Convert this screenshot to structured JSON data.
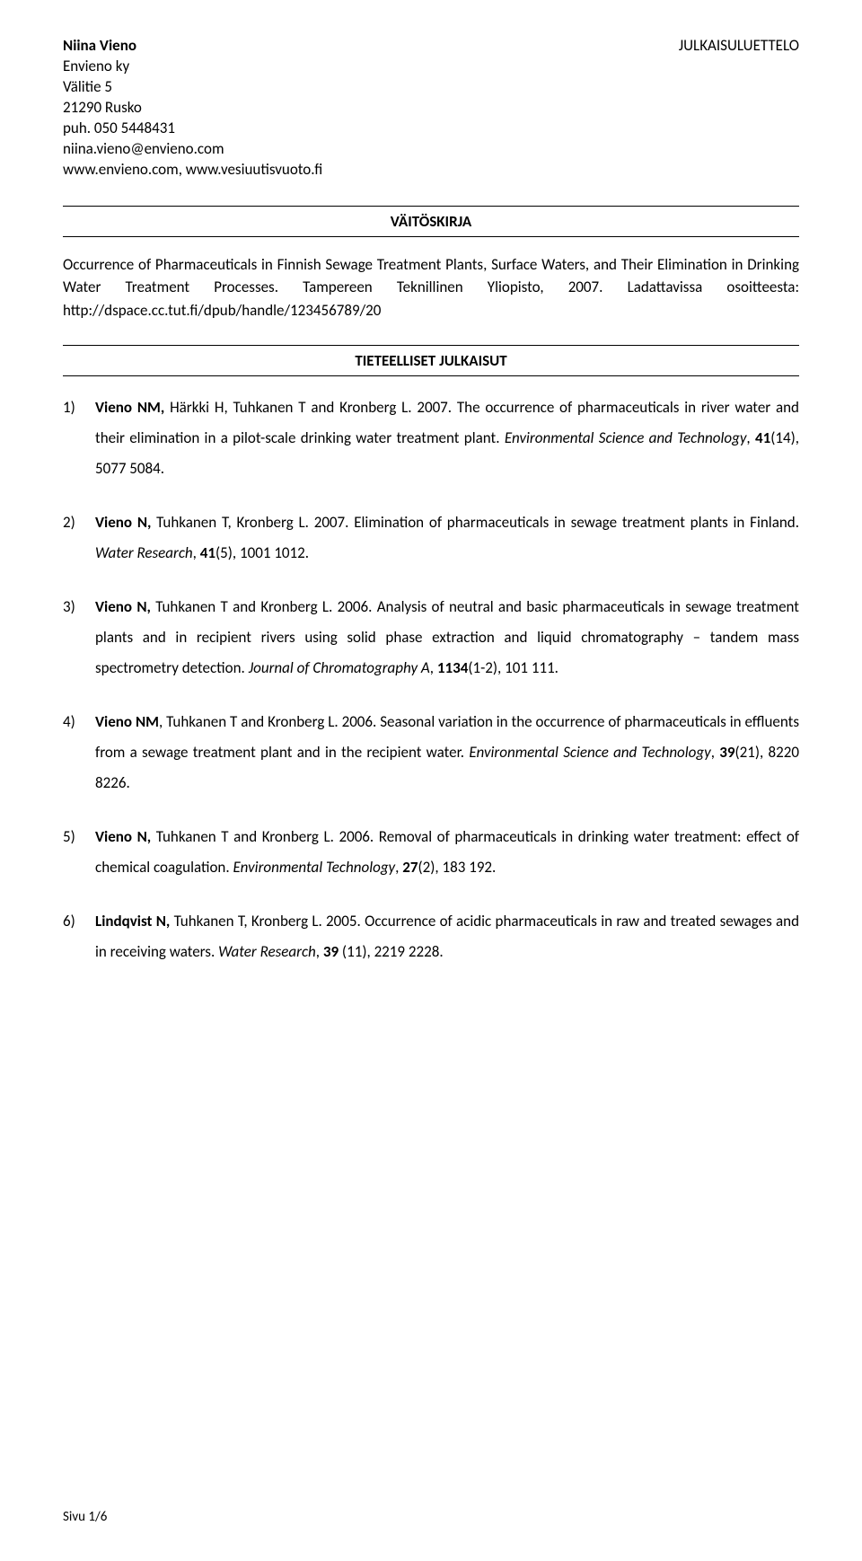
{
  "header": {
    "name": "Niina Vieno",
    "company": "Envieno ky",
    "street": "Välitie 5",
    "city": "21290 Rusko",
    "phone": "puh. 050 5448431",
    "email": "niina.vieno@envieno.com",
    "web": "www.envieno.com, www.vesiuutisvuoto.fi",
    "right": "JULKAISULUETTELO"
  },
  "section1": {
    "title": "VÄITÖSKIRJA",
    "intro_plain": "Occurrence of Pharmaceuticals in Finnish Sewage Treatment Plants, Surface Waters, and Their Elimination in Drinking Water Treatment Processes. Tampereen Teknillinen Yliopisto, 2007. Ladattavissa osoitteesta: http://dspace.cc.tut.fi/dpub/handle/123456789/20"
  },
  "section2": {
    "title": "TIETEELLISET JULKAISUT"
  },
  "pubs": [
    {
      "auth_bold": "Vieno NM,",
      "auth_rest": " Härkki H, Tuhkanen T and Kronberg L. 2007. The occurrence of pharmaceuticals in river water and their elimination in a pilot-scale drinking water treatment plant. ",
      "journal": "Environmental Science and Technology",
      "vol_bold": "41",
      "tail": "(14), 5077 5084."
    },
    {
      "auth_bold": "Vieno N,",
      "auth_rest": " Tuhkanen T, Kronberg L. 2007. Elimination of pharmaceuticals in sewage treatment plants in Finland. ",
      "journal": "Water Research",
      "vol_bold": "41",
      "tail": "(5), 1001 1012."
    },
    {
      "auth_bold": "Vieno N,",
      "auth_rest": " Tuhkanen T and Kronberg L. 2006. Analysis of neutral and basic pharmaceuticals in sewage treatment plants and in recipient rivers using solid phase extraction and liquid chromatography – tandem mass spectrometry detection. ",
      "journal": "Journal of Chromatography A",
      "vol_bold": "1134",
      "tail": "(1-2), 101 111."
    },
    {
      "auth_bold": "Vieno NM",
      "auth_rest": ", Tuhkanen T and Kronberg L. 2006. Seasonal variation in the occurrence of pharmaceuticals in effluents from a sewage treatment plant and in the recipient water. ",
      "journal": "Environmental Science and Technology",
      "vol_bold": "39",
      "tail": "(21), 8220 8226."
    },
    {
      "auth_bold": "Vieno N,",
      "auth_rest": " Tuhkanen T and Kronberg L. 2006. Removal of pharmaceuticals in drinking water treatment: effect of chemical coagulation. ",
      "journal": "Environmental Technology",
      "vol_bold": "27",
      "tail": "(2), 183 192."
    },
    {
      "auth_bold": "Lindqvist N,",
      "auth_rest": " Tuhkanen T, Kronberg L. 2005. Occurrence of acidic pharmaceuticals in raw and treated sewages and in receiving waters. ",
      "journal": "Water Research",
      "vol_bold": "39",
      "tail": " (11), 2219 2228."
    }
  ],
  "footer": "Sivu 1/6",
  "colors": {
    "text": "#000000",
    "bg": "#ffffff",
    "rule": "#000000"
  },
  "typography": {
    "base_fontsize_pt": 12,
    "font_family": "Calibri"
  }
}
